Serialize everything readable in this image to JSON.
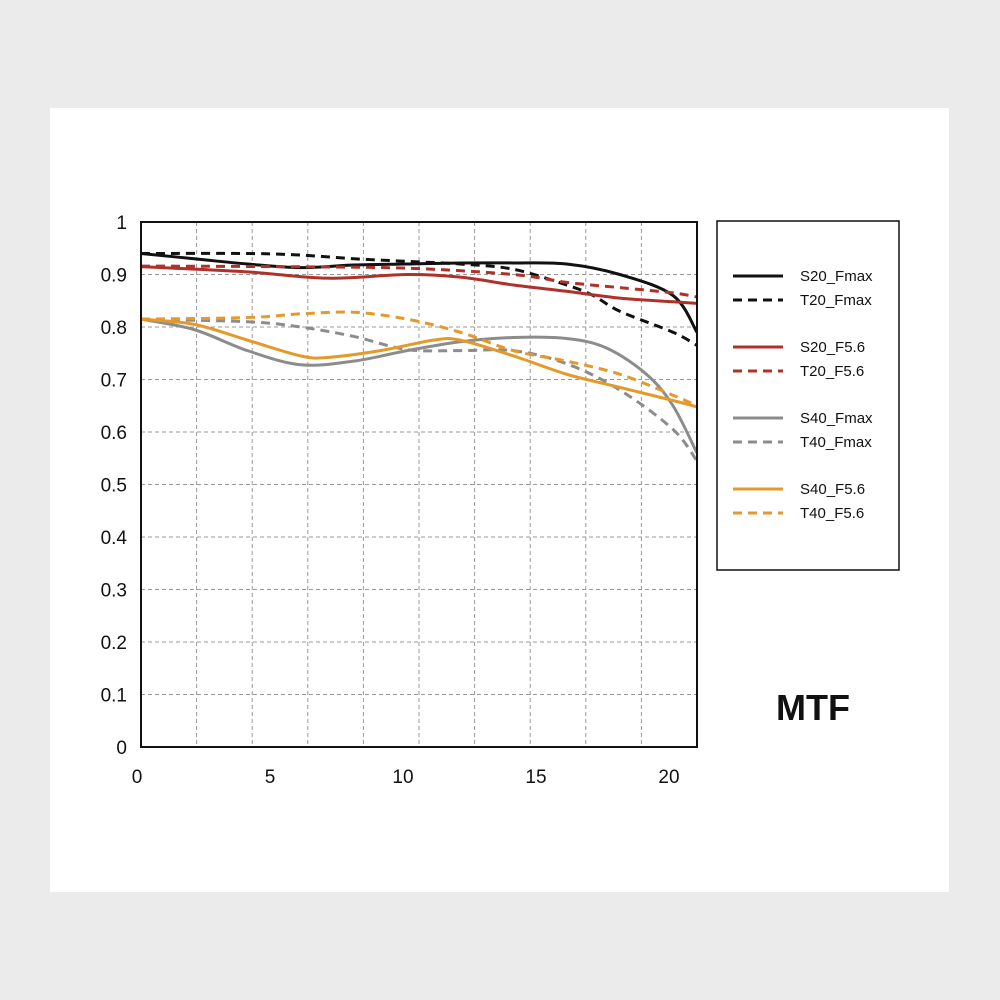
{
  "chart_data": {
    "type": "line",
    "title": "MTF",
    "xlabel": "",
    "ylabel": "",
    "xlim": [
      0,
      20.9
    ],
    "ylim": [
      0,
      1
    ],
    "xticks": [
      "0",
      "5",
      "10",
      "15",
      "20"
    ],
    "yticks": [
      "0",
      "0.1",
      "0.2",
      "0.3",
      "0.4",
      "0.5",
      "0.6",
      "0.7",
      "0.8",
      "0.9",
      "1"
    ],
    "grid": true,
    "legend_placement": "right",
    "series": [
      {
        "name": "S20_Fmax",
        "color": "#111111",
        "dash": false,
        "x": [
          0,
          2,
          4,
          6,
          8,
          10,
          12,
          14,
          16,
          18,
          20,
          20.9
        ],
        "y": [
          0.94,
          0.93,
          0.92,
          0.913,
          0.918,
          0.92,
          0.922,
          0.922,
          0.92,
          0.9,
          0.86,
          0.79
        ]
      },
      {
        "name": "T20_Fmax",
        "color": "#111111",
        "dash": true,
        "x": [
          0,
          4,
          6,
          8,
          10,
          12,
          14,
          16,
          17,
          18,
          20,
          20.9
        ],
        "y": [
          0.94,
          0.94,
          0.937,
          0.93,
          0.925,
          0.92,
          0.91,
          0.88,
          0.86,
          0.83,
          0.79,
          0.765
        ]
      },
      {
        "name": "S20_F5.6",
        "color": "#b0312a",
        "dash": false,
        "x": [
          0,
          4,
          7,
          10,
          12,
          14,
          16,
          18,
          20,
          20.9
        ],
        "y": [
          0.915,
          0.905,
          0.893,
          0.9,
          0.895,
          0.88,
          0.868,
          0.855,
          0.848,
          0.845
        ]
      },
      {
        "name": "T20_F5.6",
        "color": "#b0312a",
        "dash": true,
        "x": [
          0,
          5,
          10,
          14,
          16,
          18,
          20,
          20.9
        ],
        "y": [
          0.916,
          0.915,
          0.912,
          0.9,
          0.885,
          0.875,
          0.865,
          0.857
        ]
      },
      {
        "name": "S40_Fmax",
        "color": "#8c8c8c",
        "dash": false,
        "x": [
          0,
          2,
          4,
          6,
          8,
          10,
          12,
          14,
          16,
          17.5,
          19,
          20,
          20.9
        ],
        "y": [
          0.815,
          0.795,
          0.755,
          0.728,
          0.735,
          0.755,
          0.772,
          0.78,
          0.778,
          0.76,
          0.71,
          0.65,
          0.56
        ]
      },
      {
        "name": "T40_Fmax",
        "color": "#8c8c8c",
        "dash": true,
        "x": [
          0,
          4,
          6,
          8,
          10,
          12,
          14,
          16,
          18,
          20,
          20.9
        ],
        "y": [
          0.815,
          0.81,
          0.8,
          0.782,
          0.757,
          0.755,
          0.755,
          0.73,
          0.68,
          0.605,
          0.545
        ]
      },
      {
        "name": "S40_F5.6",
        "color": "#e39a2b",
        "dash": false,
        "x": [
          0,
          2,
          4,
          6,
          7,
          9,
          11,
          12,
          14,
          16,
          18,
          20,
          20.9
        ],
        "y": [
          0.815,
          0.805,
          0.775,
          0.745,
          0.742,
          0.755,
          0.775,
          0.775,
          0.745,
          0.71,
          0.685,
          0.66,
          0.648
        ]
      },
      {
        "name": "T40_F5.6",
        "color": "#e39a2b",
        "dash": true,
        "x": [
          0,
          4,
          6,
          8,
          10,
          12,
          14,
          16,
          18,
          20,
          20.9
        ],
        "y": [
          0.815,
          0.818,
          0.825,
          0.828,
          0.815,
          0.79,
          0.755,
          0.735,
          0.71,
          0.67,
          0.65
        ]
      }
    ]
  }
}
